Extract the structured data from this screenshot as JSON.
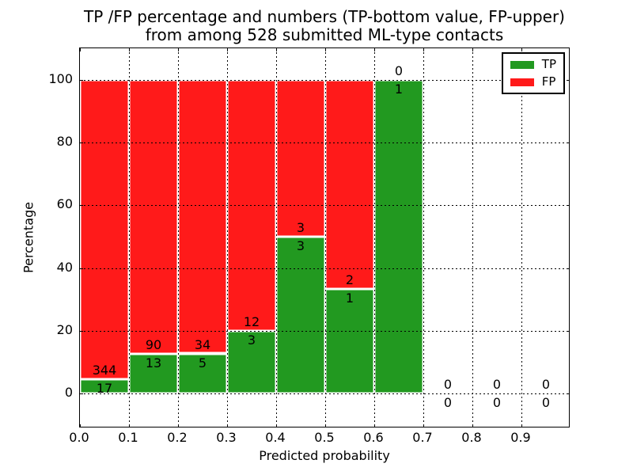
{
  "figure": {
    "title_line1": "TP /FP percentage and numbers (TP-bottom value, FP-upper)",
    "title_line2": "from among 528 submitted ML-type contacts"
  },
  "axes": {
    "xlabel": "Predicted probability",
    "ylabel": "Percentage",
    "xtick_labels": [
      "0.0",
      "0.1",
      "0.2",
      "0.3",
      "0.4",
      "0.5",
      "0.6",
      "0.7",
      "0.8",
      "0.9"
    ],
    "xtick_values": [
      0,
      0.1,
      0.2,
      0.3,
      0.4,
      0.5,
      0.6,
      0.7,
      0.8,
      0.9
    ],
    "ytick_values": [
      0,
      20,
      40,
      60,
      80,
      100
    ],
    "xlim": [
      0,
      1.0
    ],
    "ylim": [
      -11,
      110
    ],
    "grid": "dotted-black-above-bars"
  },
  "legend": {
    "position": "upper-right",
    "items": [
      {
        "label": "TP",
        "color": "#229920"
      },
      {
        "label": "FP",
        "color": "#ff1a1a"
      }
    ]
  },
  "chart_data": {
    "type": "bar",
    "subtype": "stacked-histogram-normalized-per-bin",
    "title": "TP /FP percentage and numbers (TP-bottom value, FP-upper) from among 528 submitted ML-type contacts",
    "xlabel": "Predicted probability",
    "ylabel": "Percentage",
    "xlim": [
      0,
      1.0
    ],
    "ylim": [
      -11,
      110
    ],
    "grid": true,
    "legend_position": "upper right",
    "bin_edges": [
      0.0,
      0.1,
      0.2,
      0.3,
      0.4,
      0.5,
      0.6,
      0.7,
      0.8,
      0.9,
      1.0
    ],
    "series": [
      {
        "name": "TP",
        "color": "#229920",
        "counts": [
          17,
          13,
          5,
          3,
          3,
          1,
          1,
          0,
          0,
          0
        ]
      },
      {
        "name": "FP",
        "color": "#ff1a1a",
        "counts": [
          344,
          90,
          34,
          12,
          3,
          2,
          0,
          0,
          0,
          0
        ]
      }
    ],
    "tp_percent_per_bin": [
      4.71,
      12.62,
      12.82,
      20.0,
      50.0,
      33.33,
      100.0,
      0,
      0,
      0
    ],
    "note_labels": "TP count shown below the TP/FP boundary, FP count shown above it; empty bins show 0 over 0 at the zero line",
    "total_contacts": 528
  },
  "colors": {
    "tp": "#229920",
    "fp": "#ff1a1a",
    "grid": "#000000",
    "bar_edge": "#ffffff",
    "background": "#ffffff"
  }
}
